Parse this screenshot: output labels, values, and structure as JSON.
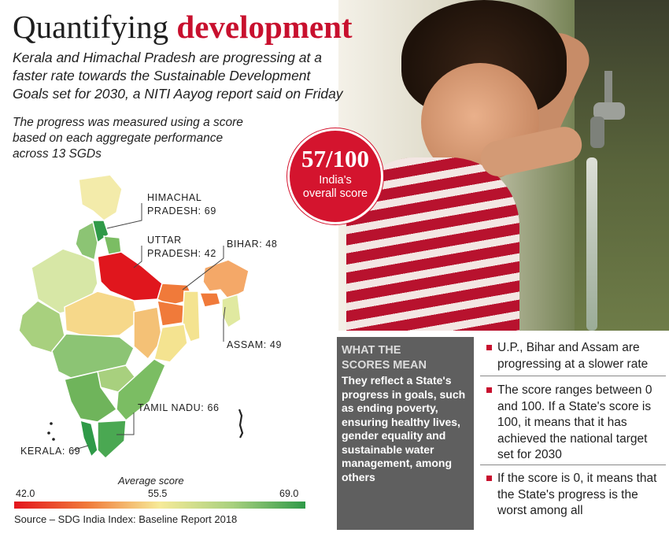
{
  "header": {
    "title_plain": "Quantifying",
    "title_accent": "development",
    "intro": "Kerala and Himachal Pradesh are progressing at a\nfaster rate towards the Sustainable Development\nGoals set for 2030, a NITI Aayog report said on Friday",
    "methodology": "The progress was measured using a score\nbased on each aggregate performance\nacross 13 SGDs"
  },
  "overall_score": {
    "value": "57/100",
    "label": "India's\noverall score"
  },
  "map_labels": {
    "himachal": "HIMACHAL\nPRADESH: 69",
    "uttar": "UTTAR\nPRADESH: 42",
    "bihar": "BIHAR: 48",
    "assam": "ASSAM: 49",
    "tamil_nadu": "TAMIL NADU: 66",
    "kerala": "KERALA: 69"
  },
  "legend": {
    "title": "Average score",
    "min": "42.0",
    "mid": "55.5",
    "max": "69.0",
    "colors": [
      "#e3151d",
      "#f07a3a",
      "#f6ea98",
      "#a8d07e",
      "#2f9a48"
    ]
  },
  "source": "Source – SDG India Index: Baseline Report 2018",
  "scores_box": {
    "title": "WHAT THE\nSCORES MEAN",
    "body": "They reflect a State's progress in goals, such as ending poverty, ensuring healthy lives, gender equality and sustainable water management, among others"
  },
  "bullets": [
    "U.P., Bihar and Assam are progressing at a slower rate",
    "The score ranges between 0 and 100. If a State's score is 100, it means that it has achieved the national target set for 2030",
    "If the score is 0, it means that the State's progress is the worst among all"
  ]
}
